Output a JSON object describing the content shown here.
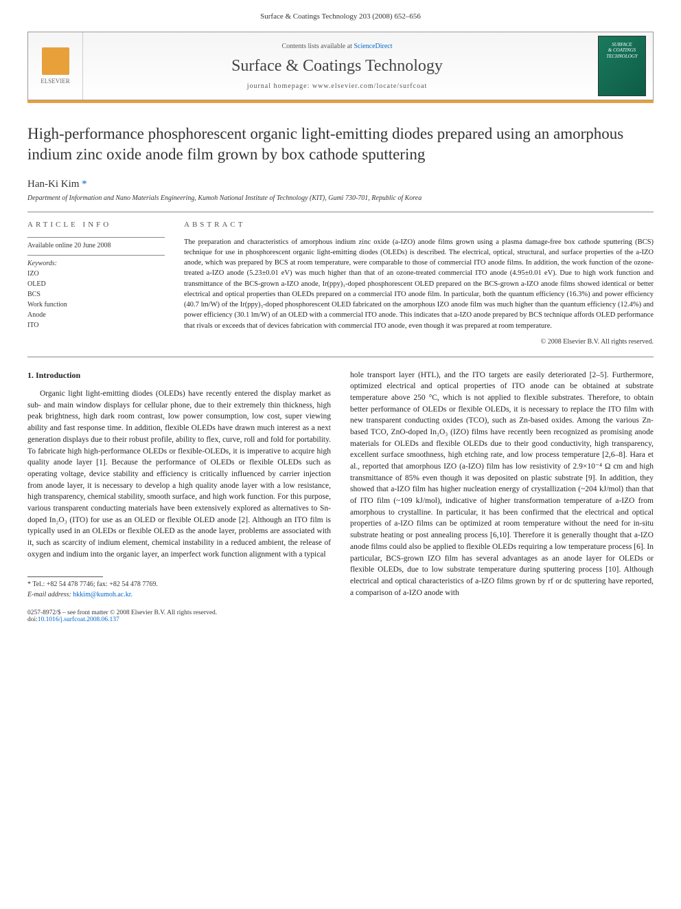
{
  "header": {
    "running_head": "Surface & Coatings Technology 203 (2008) 652–656"
  },
  "banner": {
    "contents_prefix": "Contents lists available at ",
    "contents_link": "ScienceDirect",
    "journal_name": "Surface & Coatings Technology",
    "homepage_label": "journal homepage: www.elsevier.com/locate/surfcoat",
    "publisher_name": "ELSEVIER",
    "cover_text_1": "SURFACE",
    "cover_text_2": "& COATINGS",
    "cover_text_3": "TECHNOLOGY"
  },
  "article": {
    "title": "High-performance phosphorescent organic light-emitting diodes prepared using an amorphous indium zinc oxide anode film grown by box cathode sputtering",
    "author": "Han-Ki Kim",
    "corr_marker": "*",
    "affiliation": "Department of Information and Nano Materials Engineering, Kumoh National Institute of Technology (KIT), Gumi 730-701, Republic of Korea"
  },
  "info": {
    "heading": "ARTICLE INFO",
    "available": "Available online 20 June 2008",
    "keywords_label": "Keywords:",
    "keywords": [
      "IZO",
      "OLED",
      "BCS",
      "Work function",
      "Anode",
      "ITO"
    ]
  },
  "abstract": {
    "heading": "ABSTRACT",
    "text": "The preparation and characteristics of amorphous indium zinc oxide (a-IZO) anode films grown using a plasma damage-free box cathode sputtering (BCS) technique for use in phosphorescent organic light-emitting diodes (OLEDs) is described. The electrical, optical, structural, and surface properties of the a-IZO anode, which was prepared by BCS at room temperature, were comparable to those of commercial ITO anode films. In addition, the work function of the ozone-treated a-IZO anode (5.23±0.01 eV) was much higher than that of an ozone-treated commercial ITO anode (4.95±0.01 eV). Due to high work function and transmittance of the BCS-grown a-IZO anode, Ir(ppy)₃-doped phosphorescent OLED prepared on the BCS-grown a-IZO anode films showed identical or better electrical and optical properties than OLEDs prepared on a commercial ITO anode film. In particular, both the quantum efficiency (16.3%) and power efficiency (40.7 lm/W) of the Ir(ppy)₃-doped phosphorescent OLED fabricated on the amorphous IZO anode film was much higher than the quantum efficiency (12.4%) and power efficiency (30.1 lm/W) of an OLED with a commercial ITO anode. This indicates that a-IZO anode prepared by BCS technique affords OLED performance that rivals or exceeds that of devices fabrication with commercial ITO anode, even though it was prepared at room temperature.",
    "copyright": "© 2008 Elsevier B.V. All rights reserved."
  },
  "body": {
    "section_title": "1. Introduction",
    "col1": "Organic light light-emitting diodes (OLEDs) have recently entered the display market as sub- and main window displays for cellular phone, due to their extremely thin thickness, high peak brightness, high dark room contrast, low power consumption, low cost, super viewing ability and fast response time. In addition, flexible OLEDs have drawn much interest as a next generation displays due to their robust profile, ability to flex, curve, roll and fold for portability. To fabricate high high-performance OLEDs or flexible-OLEDs, it is imperative to acquire high quality anode layer [1]. Because the performance of OLEDs or flexible OLEDs such as operating voltage, device stability and efficiency is critically influenced by carrier injection from anode layer, it is necessary to develop a high quality anode layer with a low resistance, high transparency, chemical stability, smooth surface, and high work function. For this purpose, various transparent conducting materials have been extensively explored as alternatives to Sn-doped In₂O₃ (ITO) for use as an OLED or flexible OLED anode [2]. Although an ITO film is typically used in an OLEDs or flexible OLED as the anode layer, problems are associated with it, such as scarcity of indium element, chemical instability in a reduced ambient, the release of oxygen and indium into the organic layer, an imperfect work function alignment with a typical",
    "col2": "hole transport layer (HTL), and the ITO targets are easily deteriorated [2–5]. Furthermore, optimized electrical and optical properties of ITO anode can be obtained at substrate temperature above 250 °C, which is not applied to flexible substrates. Therefore, to obtain better performance of OLEDs or flexible OLEDs, it is necessary to replace the ITO film with new transparent conducting oxides (TCO), such as Zn-based oxides. Among the various Zn-based TCO, ZnO-doped In₂O₃ (IZO) films have recently been recognized as promising anode materials for OLEDs and flexible OLEDs due to their good conductivity, high transparency, excellent surface smoothness, high etching rate, and low process temperature [2,6–8]. Hara et al., reported that amorphous IZO (a-IZO) film has low resistivity of 2.9×10⁻⁴ Ω cm and high transmittance of 85% even though it was deposited on plastic substrate [9]. In addition, they showed that a-IZO film has higher nucleation energy of crystallization (~204 kJ/mol) than that of ITO film (~109 kJ/mol), indicative of higher transformation temperature of a-IZO from amorphous to crystalline. In particular, it has been confirmed that the electrical and optical properties of a-IZO films can be optimized at room temperature without the need for in-situ substrate heating or post annealing process [6,10]. Therefore it is generally thought that a-IZO anode films could also be applied to flexible OLEDs requiring a low temperature process [6]. In particular, BCS-grown IZO film has several advantages as an anode layer for OLEDs or flexible OLEDs, due to low substrate temperature during sputtering process [10]. Although electrical and optical characteristics of a-IZO films grown by rf or dc sputtering have reported, a comparison of a-IZO anode with"
  },
  "footnote": {
    "tel": "* Tel.: +82 54 478 7746; fax: +82 54 478 7769.",
    "email_label": "E-mail address: ",
    "email": "hkkim@kumoh.ac.kr."
  },
  "footer": {
    "issn_line": "0257-8972/$ – see front matter © 2008 Elsevier B.V. All rights reserved.",
    "doi_label": "doi:",
    "doi": "10.1016/j.surfcoat.2008.06.137"
  },
  "colors": {
    "accent_orange": "#e8a03a",
    "link_blue": "#0066cc",
    "cover_green": "#1a7a5e",
    "text": "#222222",
    "rule_gray": "#888888"
  }
}
